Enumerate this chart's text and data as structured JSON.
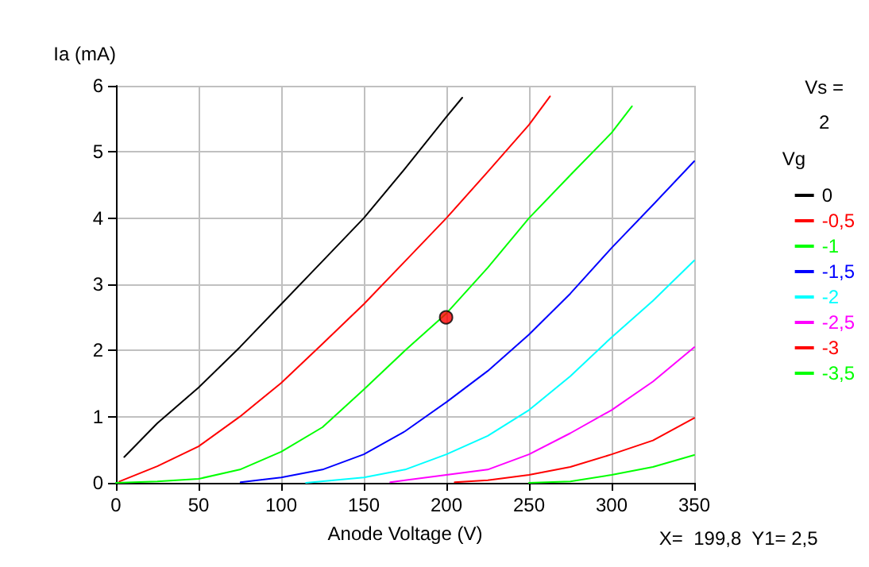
{
  "chart_data": {
    "type": "line",
    "xlabel": "Anode Voltage (V)",
    "ylabel": "Ia (mA)",
    "legend_title": "Vg",
    "xlim": [
      0,
      350
    ],
    "xticks": [
      0,
      50,
      100,
      150,
      200,
      250,
      300,
      350
    ],
    "ylim": [
      0,
      6
    ],
    "yticks": [
      0,
      1,
      2,
      3,
      4,
      5,
      6
    ],
    "grid": true,
    "legend": "right",
    "marker": "none",
    "line_style": "solid",
    "annotations": [
      "Vs =\n2",
      "X=  199,8  Y1= 2,5"
    ],
    "series": [
      {
        "name": "0",
        "color": "#000000",
        "x": [
          5,
          25,
          50,
          75,
          100,
          125,
          150,
          175,
          200,
          209.6
        ],
        "values": [
          0.39,
          0.9,
          1.44,
          2.05,
          2.7,
          3.35,
          4.0,
          4.75,
          5.53,
          5.82
        ]
      },
      {
        "name": "-0,5",
        "color": "#ff0000",
        "x": [
          2,
          25,
          50,
          75,
          100,
          125,
          150,
          175,
          200,
          225,
          250,
          262.7
        ],
        "values": [
          0.02,
          0.25,
          0.55,
          1.0,
          1.51,
          2.1,
          2.7,
          3.35,
          4.0,
          4.7,
          5.41,
          5.84
        ]
      },
      {
        "name": "-1",
        "color": "#00ff00",
        "x": [
          0,
          25,
          50,
          75,
          100,
          125,
          150,
          175,
          200,
          225,
          250,
          275,
          300,
          312.3
        ],
        "values": [
          0,
          0.02,
          0.06,
          0.2,
          0.47,
          0.84,
          1.41,
          2.0,
          2.56,
          3.25,
          4.0,
          4.65,
          5.29,
          5.69
        ]
      },
      {
        "name": "-1,5",
        "color": "#0000ff",
        "x": [
          75.4,
          100,
          125,
          150,
          175,
          200,
          225,
          250,
          275,
          300,
          325,
          350
        ],
        "values": [
          0.01,
          0.08,
          0.2,
          0.43,
          0.78,
          1.22,
          1.69,
          2.24,
          2.86,
          3.55,
          4.2,
          4.86
        ]
      },
      {
        "name": "-2",
        "color": "#00ffff",
        "x": [
          115,
          150,
          175,
          200,
          225,
          250,
          275,
          300,
          325,
          350
        ],
        "values": [
          0,
          0.08,
          0.2,
          0.43,
          0.71,
          1.1,
          1.61,
          2.2,
          2.75,
          3.36
        ]
      },
      {
        "name": "-2,5",
        "color": "#ff00ff",
        "x": [
          166,
          200,
          225,
          250,
          275,
          300,
          325,
          350
        ],
        "values": [
          0.01,
          0.12,
          0.2,
          0.43,
          0.75,
          1.1,
          1.53,
          2.05
        ]
      },
      {
        "name": "-3",
        "color": "#ff0000",
        "x": [
          205,
          225,
          250,
          275,
          300,
          325,
          350
        ],
        "values": [
          0.01,
          0.04,
          0.12,
          0.24,
          0.43,
          0.64,
          0.98
        ]
      },
      {
        "name": "-3,5",
        "color": "#00ff00",
        "x": [
          250,
          275,
          300,
          325,
          350
        ],
        "values": [
          0,
          0.02,
          0.12,
          0.24,
          0.42
        ]
      },
      {
        "type": "scatter",
        "marker": "circle",
        "color": "#ff0000",
        "x": [
          199.8
        ],
        "values": [
          2.5
        ]
      }
    ]
  }
}
